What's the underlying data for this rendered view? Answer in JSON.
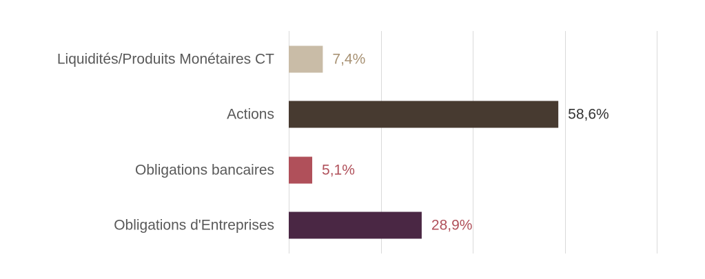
{
  "chart_data": {
    "type": "bar",
    "orientation": "horizontal",
    "categories": [
      "Liquidités/Produits Monétaires CT",
      "Actions",
      "Obligations bancaires",
      "Obligations d'Entreprises"
    ],
    "values": [
      7.4,
      58.6,
      5.1,
      28.9
    ],
    "value_labels": [
      "7,4%",
      "58,6%",
      "5,1%",
      "28,9%"
    ],
    "bar_colors": [
      "#c9bca7",
      "#473a30",
      "#b0505a",
      "#4a2744"
    ],
    "label_colors": [
      "#a89274",
      "#333333",
      "#b0505a",
      "#b0505a"
    ],
    "xlim": [
      0,
      80
    ],
    "x_gridlines": [
      0,
      20,
      40,
      60,
      80
    ],
    "grid": true,
    "legend": false,
    "title": "",
    "xlabel": "",
    "ylabel": ""
  }
}
